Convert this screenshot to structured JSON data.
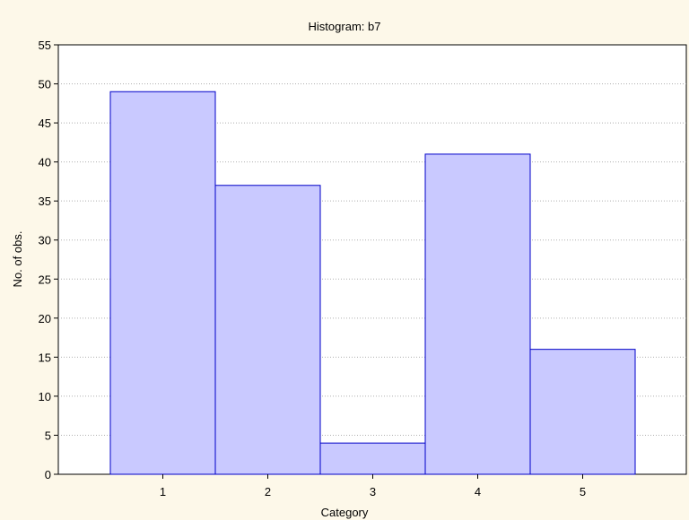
{
  "chart_data": {
    "type": "bar",
    "title": "Histogram: b7",
    "xlabel": "Category",
    "ylabel": "No. of obs.",
    "categories": [
      "1",
      "2",
      "3",
      "4",
      "5"
    ],
    "values": [
      49,
      37,
      4,
      41,
      16
    ],
    "ylim": [
      0,
      55
    ],
    "yticks": [
      0,
      5,
      10,
      15,
      20,
      25,
      30,
      35,
      40,
      45,
      50,
      55
    ],
    "grid": true,
    "bar_fill": "#c9c9ff",
    "bar_stroke": "#0000c8",
    "background": "#fdf8e9",
    "plot_background": "#ffffff"
  }
}
